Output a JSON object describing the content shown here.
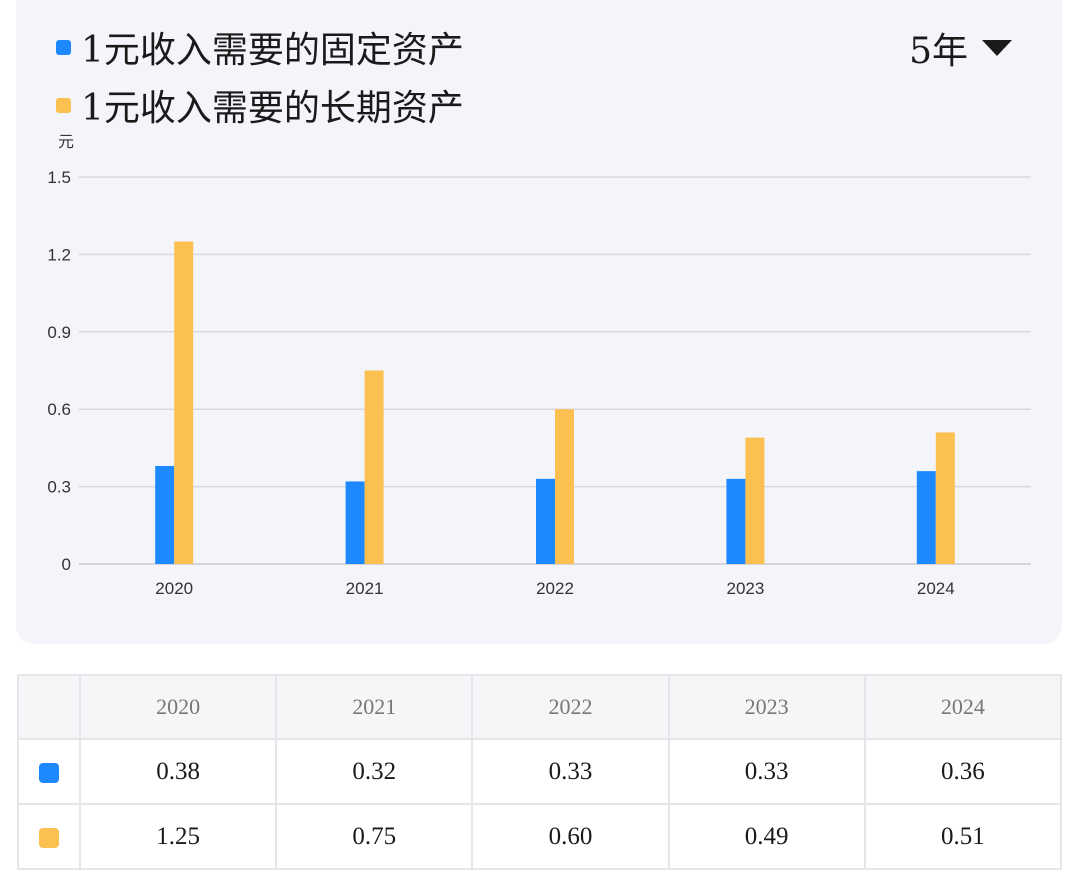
{
  "legend": {
    "items": [
      {
        "label": "1元收入需要的固定资产",
        "color": "#1e88ff"
      },
      {
        "label": "1元收入需要的长期资产",
        "color": "#fbc04f"
      }
    ]
  },
  "period_selector": {
    "label": "5年",
    "icon": "caret-down-icon"
  },
  "chart_data": {
    "type": "bar",
    "categories": [
      "2020",
      "2021",
      "2022",
      "2023",
      "2024"
    ],
    "series": [
      {
        "name": "1元收入需要的固定资产",
        "color": "#1e88ff",
        "values": [
          0.38,
          0.32,
          0.33,
          0.33,
          0.36
        ]
      },
      {
        "name": "1元收入需要的长期资产",
        "color": "#fbc04f",
        "values": [
          1.25,
          0.75,
          0.6,
          0.49,
          0.51
        ]
      }
    ],
    "unit": "元",
    "ylim": [
      0,
      1.5
    ],
    "yticks": [
      "0",
      "0.3",
      "0.6",
      "0.9",
      "1.2",
      "1.5"
    ],
    "ytick_values": [
      0,
      0.3,
      0.6,
      0.9,
      1.2,
      1.5
    ],
    "grid": true,
    "legend_position": "top-left"
  },
  "table": {
    "headers": [
      "2020",
      "2021",
      "2022",
      "2023",
      "2024"
    ],
    "rows": [
      {
        "color": "#1e88ff",
        "cells": [
          "0.38",
          "0.32",
          "0.33",
          "0.33",
          "0.36"
        ]
      },
      {
        "color": "#fbc04f",
        "cells": [
          "1.25",
          "0.75",
          "0.60",
          "0.49",
          "0.51"
        ]
      }
    ]
  }
}
